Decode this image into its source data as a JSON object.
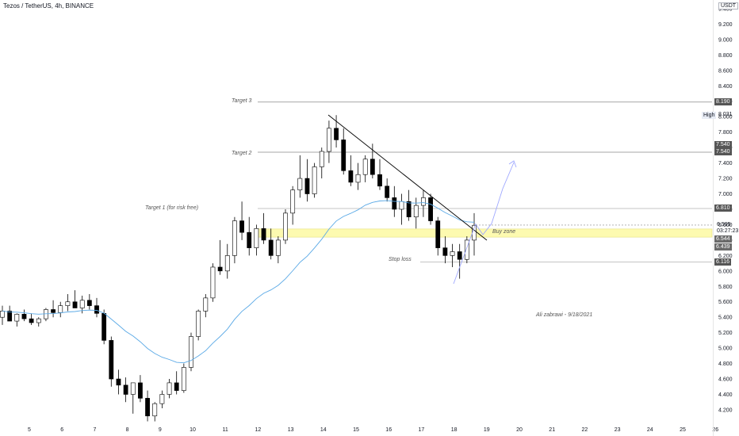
{
  "header": {
    "symbol_title": "Tezos / TetherUS, 4h, BINANCE",
    "currency": "USDT"
  },
  "colors": {
    "candle_up_fill": "#ffffff",
    "candle_down_fill": "#000000",
    "candle_outline": "#000000",
    "ma_line": "#5aa9e6",
    "level_line": "#9e9e9e",
    "buy_zone_fill": "#fdfab0",
    "projection_arrow": "#9fa8ff",
    "trendline": "#000000"
  },
  "annotations": {
    "target3": "Target 3",
    "target2": "Target 2",
    "target1": "Target 1 (for risk free)",
    "stop_loss": "Stop loss",
    "buy_zone": "Buy zone",
    "author": "Ali zabrawi - 9/18/2021"
  },
  "price_labels": {
    "target3": "8.190",
    "high_label": "High",
    "high_value": "8.031",
    "target2_a": "7.540",
    "target2_b": "7.540",
    "target1": "6.810",
    "current_price": "6.595",
    "countdown": "03:27:23",
    "buy_zone_top": "6.544",
    "buy_zone_bottom": "6.439",
    "stop_loss": "6.116"
  },
  "chart_data": {
    "type": "candlestick",
    "title": "Tezos / TetherUS, 4h, BINANCE",
    "y_ticks": [
      "9.400",
      "9.200",
      "9.000",
      "8.800",
      "8.600",
      "8.400",
      "8.200",
      "8.000",
      "7.800",
      "7.600",
      "7.400",
      "7.200",
      "7.000",
      "6.800",
      "6.600",
      "6.400",
      "6.200",
      "6.000",
      "5.800",
      "5.600",
      "5.400",
      "5.200",
      "5.000",
      "4.800",
      "4.600",
      "4.400",
      "4.200"
    ],
    "x_ticks": [
      "5",
      "6",
      "7",
      "8",
      "9",
      "10",
      "11",
      "12",
      "13",
      "14",
      "15",
      "16",
      "17",
      "18",
      "19",
      "20",
      "21",
      "22",
      "23",
      "24",
      "25",
      "26"
    ],
    "ylim": [
      4.05,
      9.6
    ],
    "levels": {
      "target3": 8.19,
      "target2": 7.54,
      "target1": 6.81,
      "buy_zone_top": 6.544,
      "buy_zone_bottom": 6.439,
      "stop_loss": 6.116
    },
    "candles_ohlc": [
      [
        5.4,
        5.55,
        5.3,
        5.48
      ],
      [
        5.48,
        5.55,
        5.38,
        5.35
      ],
      [
        5.35,
        5.45,
        5.28,
        5.44
      ],
      [
        5.44,
        5.5,
        5.35,
        5.38
      ],
      [
        5.38,
        5.45,
        5.3,
        5.33
      ],
      [
        5.33,
        5.4,
        5.28,
        5.38
      ],
      [
        5.38,
        5.52,
        5.35,
        5.5
      ],
      [
        5.5,
        5.62,
        5.4,
        5.46
      ],
      [
        5.46,
        5.6,
        5.4,
        5.55
      ],
      [
        5.55,
        5.7,
        5.48,
        5.6
      ],
      [
        5.6,
        5.75,
        5.52,
        5.52
      ],
      [
        5.52,
        5.68,
        5.45,
        5.62
      ],
      [
        5.62,
        5.7,
        5.5,
        5.55
      ],
      [
        5.55,
        5.65,
        5.4,
        5.45
      ],
      [
        5.45,
        5.5,
        5.05,
        5.1
      ],
      [
        5.1,
        5.15,
        4.5,
        4.6
      ],
      [
        4.6,
        4.72,
        4.4,
        4.52
      ],
      [
        4.52,
        4.62,
        4.3,
        4.4
      ],
      [
        4.4,
        4.55,
        4.15,
        4.55
      ],
      [
        4.55,
        4.65,
        4.3,
        4.35
      ],
      [
        4.35,
        4.45,
        4.05,
        4.12
      ],
      [
        4.12,
        4.3,
        4.05,
        4.28
      ],
      [
        4.28,
        4.45,
        4.22,
        4.4
      ],
      [
        4.4,
        4.6,
        4.35,
        4.55
      ],
      [
        4.55,
        4.7,
        4.4,
        4.45
      ],
      [
        4.45,
        4.8,
        4.42,
        4.75
      ],
      [
        4.75,
        5.2,
        4.7,
        5.15
      ],
      [
        5.15,
        5.5,
        5.1,
        5.48
      ],
      [
        5.48,
        5.7,
        5.4,
        5.65
      ],
      [
        5.65,
        6.1,
        5.6,
        6.05
      ],
      [
        6.05,
        6.4,
        5.95,
        6.0
      ],
      [
        6.0,
        6.35,
        5.9,
        6.2
      ],
      [
        6.2,
        6.7,
        6.1,
        6.65
      ],
      [
        6.65,
        6.9,
        6.4,
        6.5
      ],
      [
        6.5,
        6.7,
        6.2,
        6.3
      ],
      [
        6.3,
        6.6,
        6.2,
        6.55
      ],
      [
        6.55,
        6.75,
        6.35,
        6.4
      ],
      [
        6.4,
        6.55,
        6.15,
        6.2
      ],
      [
        6.2,
        6.45,
        6.1,
        6.4
      ],
      [
        6.4,
        6.8,
        6.35,
        6.75
      ],
      [
        6.75,
        7.1,
        6.6,
        7.05
      ],
      [
        7.05,
        7.5,
        6.95,
        7.2
      ],
      [
        7.2,
        7.45,
        6.9,
        7.0
      ],
      [
        7.0,
        7.4,
        6.95,
        7.35
      ],
      [
        7.35,
        7.6,
        7.2,
        7.55
      ],
      [
        7.55,
        7.95,
        7.4,
        7.85
      ],
      [
        7.85,
        8.02,
        7.6,
        7.7
      ],
      [
        7.7,
        7.85,
        7.25,
        7.3
      ],
      [
        7.3,
        7.5,
        7.1,
        7.15
      ],
      [
        7.15,
        7.4,
        7.05,
        7.25
      ],
      [
        7.25,
        7.5,
        7.15,
        7.45
      ],
      [
        7.45,
        7.65,
        7.2,
        7.25
      ],
      [
        7.25,
        7.45,
        7.05,
        7.1
      ],
      [
        7.1,
        7.2,
        6.9,
        6.95
      ],
      [
        6.95,
        7.1,
        6.7,
        6.8
      ],
      [
        6.8,
        7.0,
        6.6,
        6.9
      ],
      [
        6.9,
        7.05,
        6.65,
        6.7
      ],
      [
        6.7,
        6.95,
        6.55,
        6.85
      ],
      [
        6.85,
        7.05,
        6.7,
        6.95
      ],
      [
        6.95,
        7.0,
        6.6,
        6.65
      ],
      [
        6.65,
        6.7,
        6.2,
        6.3
      ],
      [
        6.3,
        6.45,
        6.1,
        6.2
      ],
      [
        6.2,
        6.35,
        6.05,
        6.25
      ],
      [
        6.25,
        6.35,
        5.9,
        6.15
      ],
      [
        6.15,
        6.45,
        6.1,
        6.4
      ],
      [
        6.4,
        6.75,
        6.2,
        6.59
      ]
    ]
  }
}
